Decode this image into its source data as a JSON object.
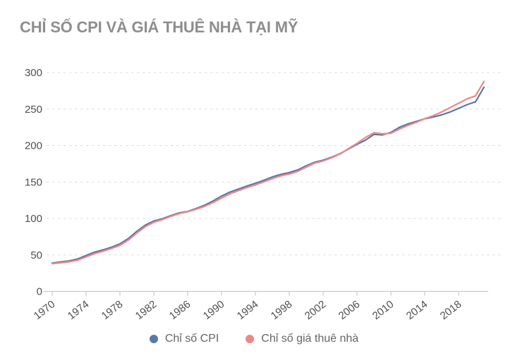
{
  "title": "CHỈ SỐ CPI VÀ GIÁ THUÊ NHÀ TẠI MỸ",
  "colors": {
    "cpi_line": "#5a79a8",
    "rent_line": "#ee8788",
    "title_text": "#8e8e8e",
    "axis_text": "#4f4f4f",
    "gridline": "#dddddd",
    "axis_line": "#c9c9c9"
  },
  "legend": {
    "items": [
      {
        "label": "Chỉ số CPI",
        "color": "#5a79a8"
      },
      {
        "label": "Chỉ số giá thuê nhà",
        "color": "#ee8788"
      }
    ]
  },
  "chart_data": {
    "type": "line",
    "title": "CHỈ SỐ CPI VÀ GIÁ THUÊ NHÀ TẠI MỸ",
    "xlabel": "",
    "ylabel": "",
    "ylim": [
      0,
      300
    ],
    "y_ticks": [
      0,
      50,
      100,
      150,
      200,
      250,
      300
    ],
    "x_tick_labels": [
      "1970",
      "1974",
      "1978",
      "1982",
      "1986",
      "1990",
      "1994",
      "1998",
      "2002",
      "2006",
      "2010",
      "2014",
      "2018"
    ],
    "grid": "horizontal-dashed",
    "legend_position": "bottom-center",
    "x": [
      1970,
      1971,
      1972,
      1973,
      1974,
      1975,
      1976,
      1977,
      1978,
      1979,
      1980,
      1981,
      1982,
      1983,
      1984,
      1985,
      1986,
      1987,
      1988,
      1989,
      1990,
      1991,
      1992,
      1993,
      1994,
      1995,
      1996,
      1997,
      1998,
      1999,
      2000,
      2001,
      2002,
      2003,
      2004,
      2005,
      2006,
      2007,
      2008,
      2009,
      2010,
      2011,
      2012,
      2013,
      2014,
      2015,
      2016,
      2017,
      2018,
      2019,
      2020,
      2021
    ],
    "series": [
      {
        "name": "Chỉ số CPI",
        "color": "#5a79a8",
        "values": [
          38.8,
          40.5,
          41.8,
          44.4,
          49.3,
          53.8,
          56.9,
          60.6,
          65.2,
          72.6,
          82.4,
          90.9,
          96.5,
          99.6,
          103.9,
          107.6,
          109.6,
          113.6,
          118.3,
          124.0,
          130.7,
          136.2,
          140.3,
          144.5,
          148.2,
          152.4,
          156.9,
          160.5,
          163.0,
          166.6,
          172.2,
          177.1,
          179.9,
          184.0,
          188.9,
          195.3,
          201.6,
          207.3,
          215.3,
          214.5,
          218.1,
          224.9,
          229.6,
          233.0,
          236.7,
          239.0,
          242.0,
          246.0,
          251.0,
          256.0,
          260.0,
          280.0
        ]
      },
      {
        "name": "Chỉ số giá thuê nhà",
        "color": "#ee8788",
        "values": [
          38.0,
          39.2,
          40.6,
          42.8,
          47.2,
          51.8,
          55.2,
          58.8,
          63.2,
          70.4,
          80.2,
          88.8,
          94.8,
          98.5,
          102.8,
          106.8,
          109.2,
          112.6,
          116.6,
          121.8,
          128.0,
          133.8,
          138.2,
          142.4,
          146.0,
          150.2,
          154.6,
          158.4,
          161.0,
          164.6,
          170.4,
          175.8,
          178.8,
          183.2,
          188.5,
          195.8,
          203.0,
          211.0,
          217.5,
          216.0,
          216.8,
          222.5,
          227.5,
          231.8,
          236.8,
          241.0,
          246.0,
          252.0,
          258.0,
          264.0,
          268.0,
          288.0
        ]
      }
    ]
  }
}
